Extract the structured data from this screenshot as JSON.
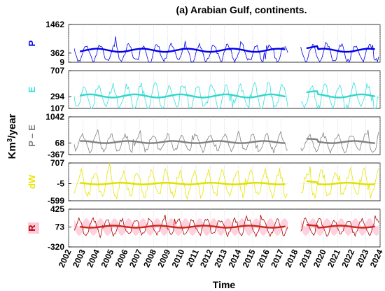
{
  "chart_data": {
    "type": "line",
    "title": "(a) Arabian Gulf, continents.",
    "xlabel": "Time",
    "ylabel_main": "Km",
    "ylabel_sup": "3",
    "ylabel_tail": "/year",
    "xlim": [
      2002,
      2024
    ],
    "x_ticks": [
      "2002",
      "2003",
      "2004",
      "2005",
      "2006",
      "2007",
      "2008",
      "2009",
      "2010",
      "2011",
      "2012",
      "2013",
      "2014",
      "2015",
      "2016",
      "2017",
      "2018",
      "2019",
      "2020",
      "2021",
      "2022",
      "2023",
      "2024"
    ],
    "data_gap": [
      2017.5,
      2018.4
    ],
    "grid": true,
    "panels": [
      {
        "label": "P",
        "color": "#0000e6",
        "smooth_color": "#0000e6",
        "band_color": "",
        "ylim": [
          9,
          1462
        ],
        "yticks": [
          "1462",
          "362",
          "9"
        ],
        "mean": 362,
        "amp": 300,
        "smooth_mean": 470,
        "smooth_amp": 60
      },
      {
        "label": "E",
        "color": "#33e0e0",
        "smooth_color": "#33d6c8",
        "band_color": "",
        "ylim": [
          107,
          707
        ],
        "yticks": [
          "707",
          "294",
          "107"
        ],
        "mean": 294,
        "amp": 180,
        "smooth_mean": 305,
        "smooth_amp": 25
      },
      {
        "label": "P – E",
        "color": "#808080",
        "smooth_color": "#808080",
        "band_color": "",
        "ylim": [
          -367,
          1042
        ],
        "yticks": [
          "1042",
          "68",
          "-367"
        ],
        "mean": 68,
        "amp": 300,
        "smooth_mean": 100,
        "smooth_amp": 40
      },
      {
        "label": "dW",
        "color": "#e6e600",
        "smooth_color": "#e0e000",
        "band_color": "",
        "ylim": [
          -599,
          707
        ],
        "yticks": [
          "707",
          "-5",
          "-599"
        ],
        "mean": -5,
        "amp": 420,
        "smooth_mean": -5,
        "smooth_amp": 30
      },
      {
        "label": "R",
        "color": "#b00000",
        "smooth_color": "#c8281e",
        "band_color": "#ffb0c8",
        "ylim": [
          -320,
          425
        ],
        "yticks": [
          "425",
          "73",
          "-320"
        ],
        "mean": 73,
        "amp": 150,
        "smooth_mean": 80,
        "smooth_amp": 20
      }
    ]
  }
}
